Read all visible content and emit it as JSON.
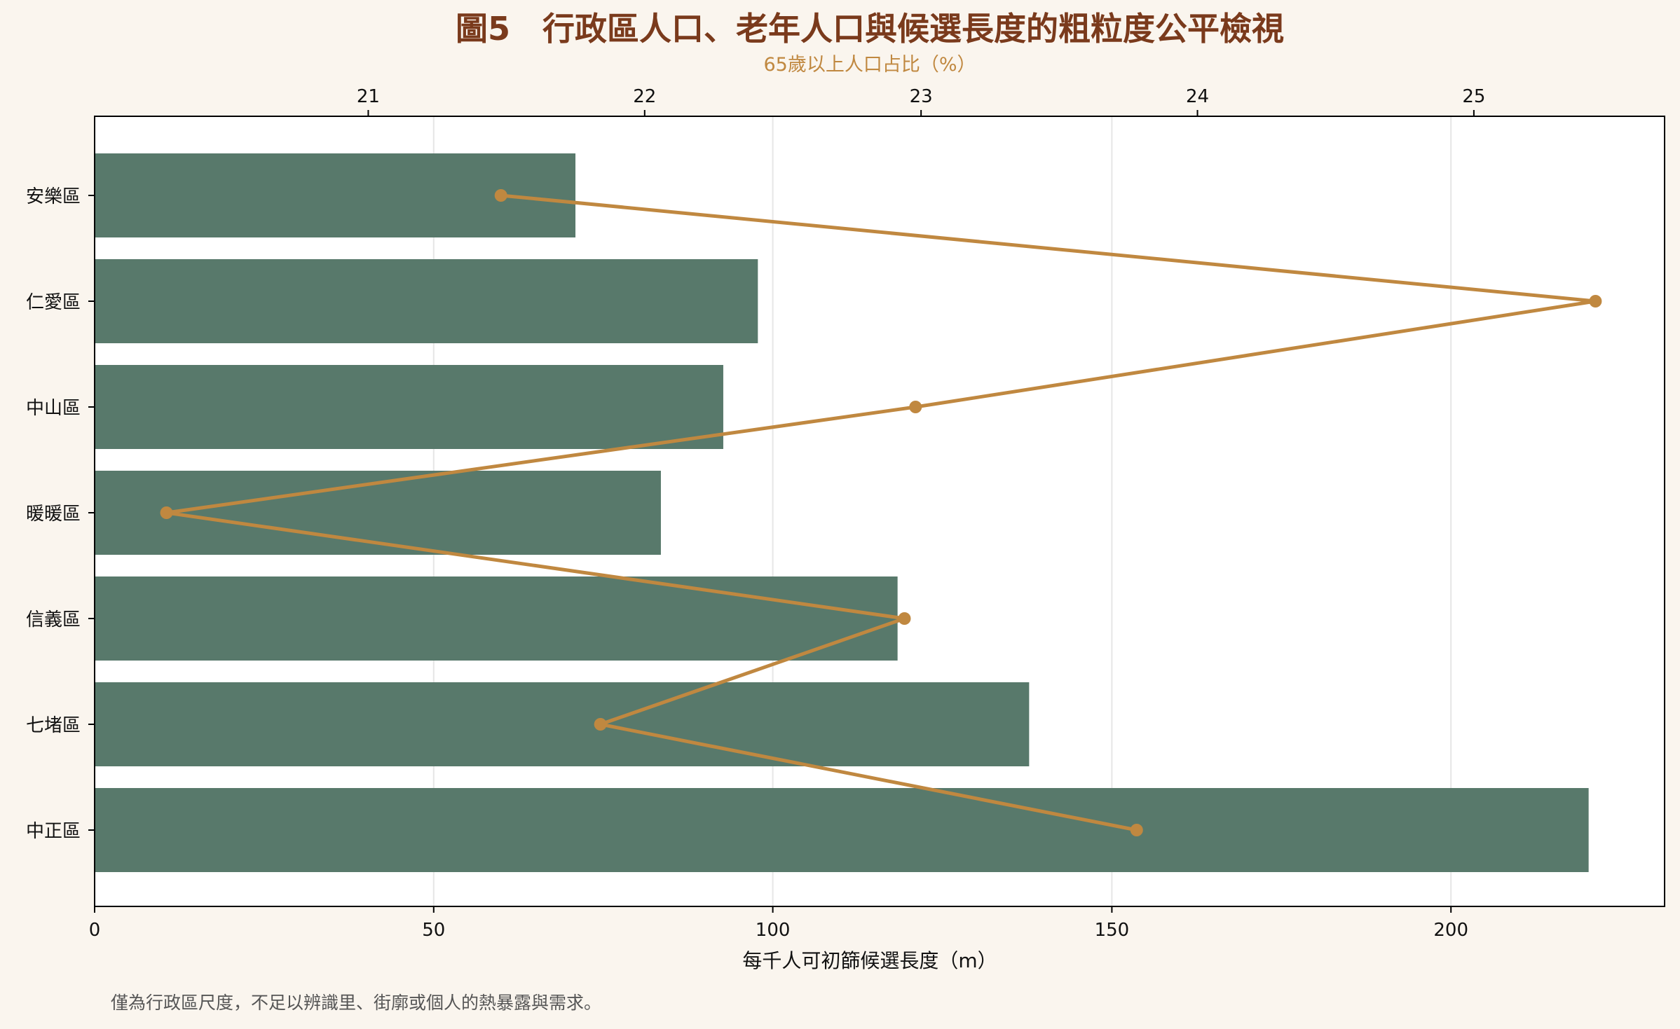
{
  "chart_data": {
    "type": "bar",
    "title": "圖5　行政區人口、老年人口與候選長度的粗粒度公平檢視",
    "categories": [
      "安樂區",
      "仁愛區",
      "中山區",
      "暖暖區",
      "信義區",
      "七堵區",
      "中正區"
    ],
    "series": [
      {
        "name": "每千人可初篩候選長度（m）",
        "type": "bar",
        "axis": "bottom",
        "values": [
          70.9,
          97.8,
          92.7,
          83.5,
          118.4,
          137.8,
          220.3
        ]
      },
      {
        "name": "65歲以上人口占比（%）",
        "type": "line",
        "axis": "top",
        "values": [
          21.48,
          25.44,
          22.98,
          20.27,
          22.94,
          21.84,
          23.78
        ]
      }
    ],
    "xlabel": "每千人可初篩候選長度（m）",
    "xlim": [
      0,
      231.5
    ],
    "xticks": [
      0,
      50,
      100,
      150,
      200
    ],
    "top_xlabel": "65歲以上人口占比（%）",
    "top_xlim": [
      20.01,
      25.69
    ],
    "top_xticks": [
      21,
      22,
      23,
      24,
      25
    ],
    "grid": "vertical",
    "footnote": "僅為行政區尺度，不足以辨識里、街廓或個人的熱暴露與需求。",
    "colors": {
      "bar": "#58796b",
      "line": "#c08840",
      "title": "#7a3a1c",
      "background": "#faf5ee",
      "plot_background": "#ffffff"
    }
  }
}
